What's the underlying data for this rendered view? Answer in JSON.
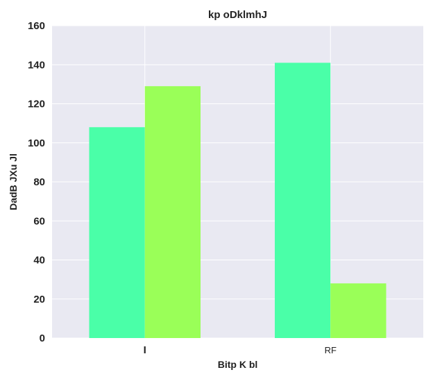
{
  "chart_data": {
    "type": "bar",
    "title": "kp oDklmhJ",
    "xlabel": "Bitp K  bl",
    "ylabel": "DadB JXu Jl",
    "categories": [
      "I",
      "RF"
    ],
    "series": [
      {
        "values": [
          108,
          141
        ],
        "color": "#4affa8"
      },
      {
        "values": [
          129,
          28
        ],
        "color": "#9aff58"
      }
    ],
    "ylim": [
      0,
      160
    ],
    "yticks": [
      "0",
      "20",
      "40",
      "60",
      "80",
      "100",
      "120",
      "140",
      "160"
    ],
    "grid": true,
    "background": "#e9e9f2",
    "grid_color": "#ffffff"
  }
}
